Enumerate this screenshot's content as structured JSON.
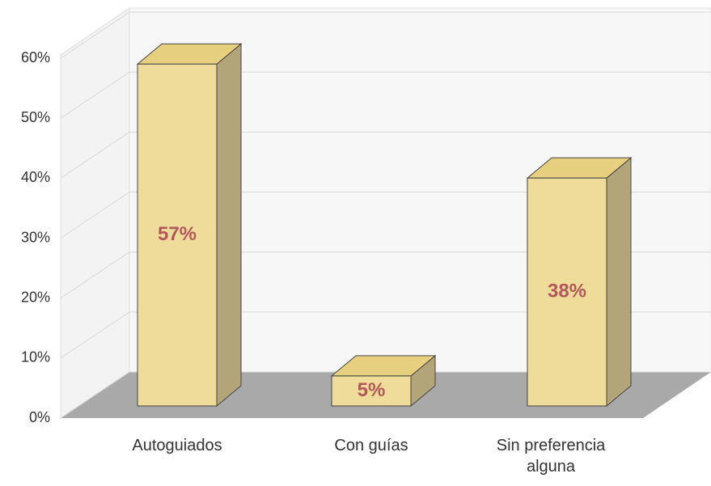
{
  "chart_data": {
    "type": "bar3d",
    "categories": [
      "Autoguiados",
      "Con guías",
      "Sin preferencia alguna"
    ],
    "values": [
      57,
      5,
      38
    ],
    "value_labels": [
      "57%",
      "5%",
      "38%"
    ],
    "color": "#f0dc9a",
    "ylim": [
      0,
      60
    ],
    "yticks": [
      {
        "value": 0,
        "label": "0%"
      },
      {
        "value": 10,
        "label": "10%"
      },
      {
        "value": 20,
        "label": "20%"
      },
      {
        "value": 30,
        "label": "30%"
      },
      {
        "value": 40,
        "label": "40%"
      },
      {
        "value": 50,
        "label": "50%"
      },
      {
        "value": 60,
        "label": "60%"
      }
    ],
    "grid": true
  }
}
